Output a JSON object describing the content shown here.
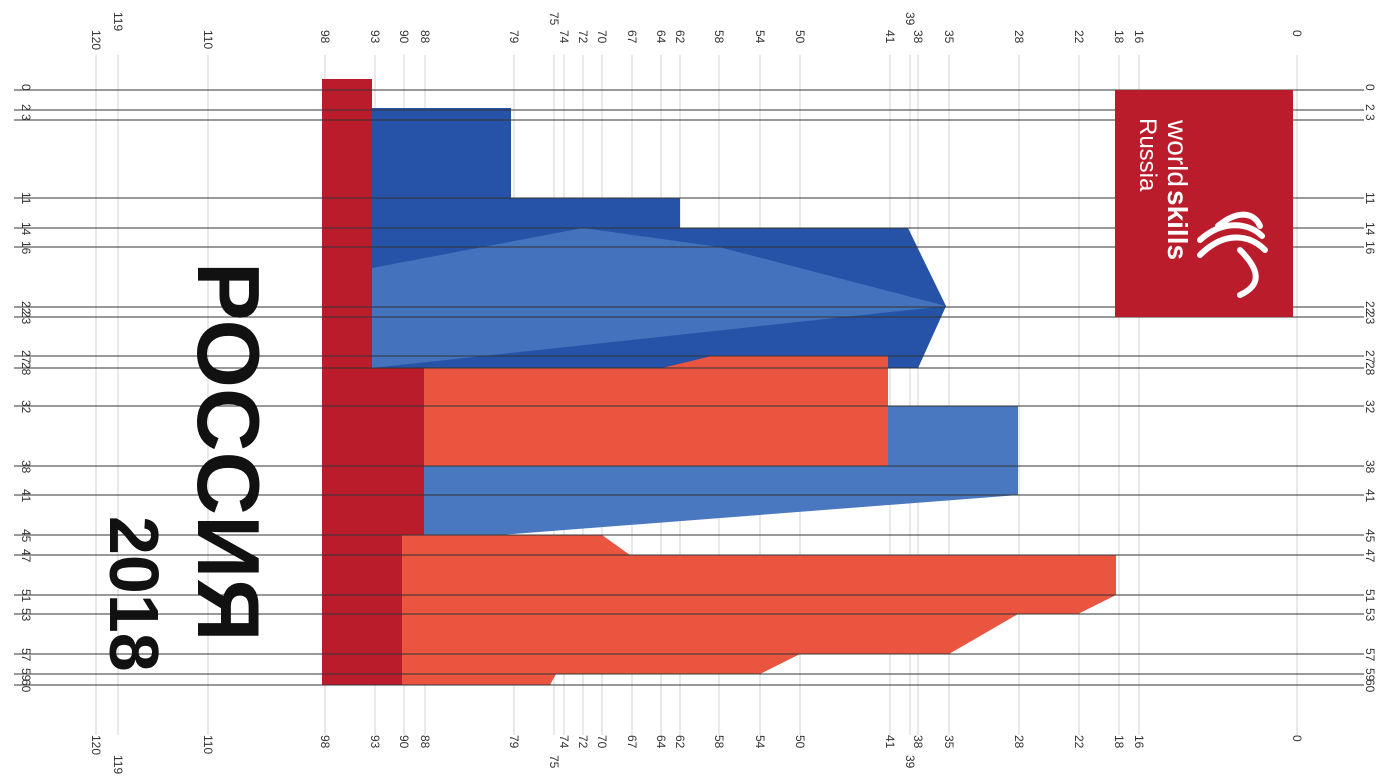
{
  "poster": {
    "title": "РОССИЯ",
    "year": "2018",
    "logo_word_world": "world",
    "logo_word_skills": "skills",
    "logo_word_russia": "Russia"
  },
  "axes": {
    "x_ticks": [
      "120",
      "119",
      "110",
      "98",
      "93",
      "90",
      "88",
      "79",
      "75",
      "74",
      "72",
      "70",
      "67",
      "64",
      "62",
      "58",
      "54",
      "50",
      "41",
      "39",
      "38",
      "35",
      "28",
      "22",
      "18",
      "16",
      "0"
    ],
    "y_ticks": [
      "0",
      "2",
      "3",
      "11",
      "14",
      "16",
      "22",
      "23",
      "27",
      "28",
      "32",
      "38",
      "41",
      "45",
      "47",
      "51",
      "53",
      "57",
      "59",
      "60"
    ]
  },
  "colors": {
    "dark_red": "#bb1c2c",
    "blue": "#2653a8",
    "light_blue": "#4a78c0",
    "orange_red": "#ea5540",
    "grid": "#d3d3d3",
    "line": "#333333"
  }
}
